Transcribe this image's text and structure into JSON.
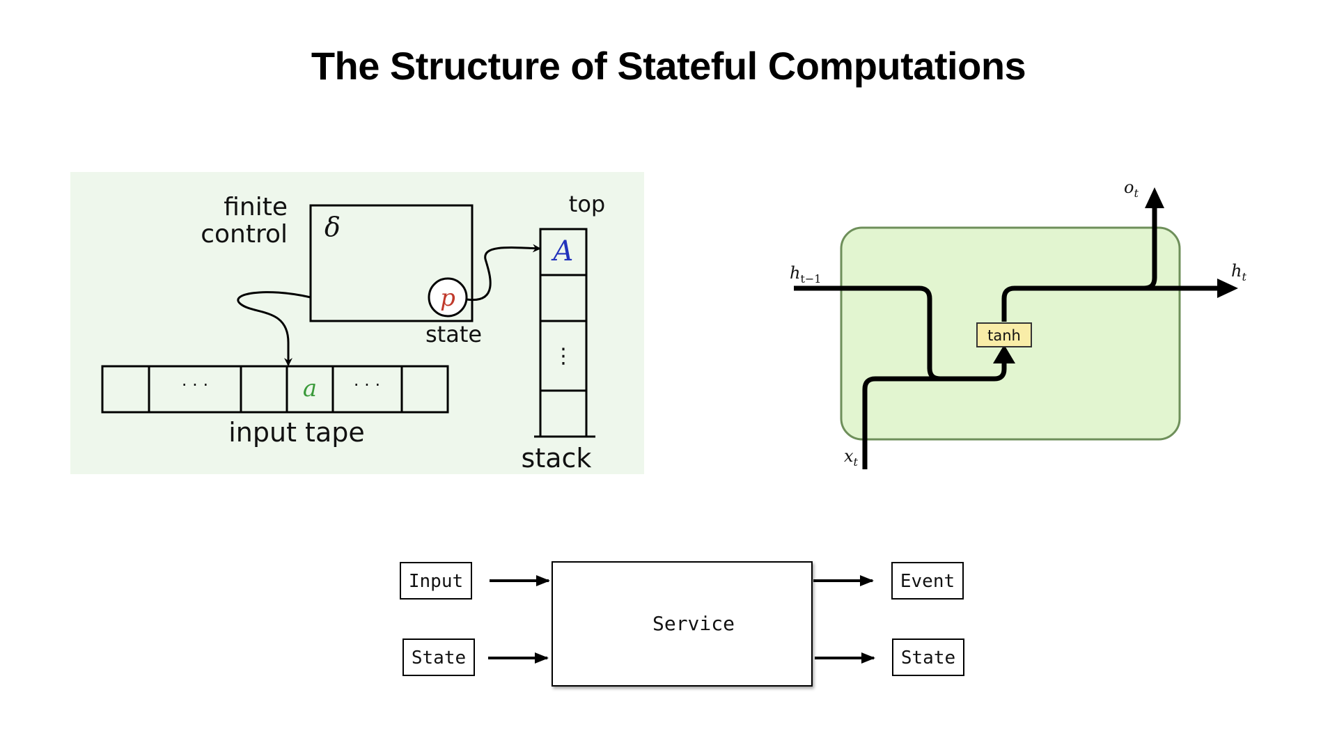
{
  "slide": {
    "title": "The Structure of Stateful Computations"
  },
  "pda": {
    "finite_control_line1": "finite",
    "finite_control_line2": "control",
    "delta_symbol": "δ",
    "state_symbol": "p",
    "state_label": "state",
    "top_label": "top",
    "stack_top_symbol": "A",
    "stack_ellipsis": "⋮",
    "stack_label": "stack",
    "tape_ellipsis": "· · ·",
    "tape_symbol": "a",
    "tape_label": "input tape",
    "colors": {
      "background": "#eef7ec",
      "state_symbol": "#c0392b",
      "stack_symbol": "#2233bb",
      "tape_symbol": "#3a9a3a"
    }
  },
  "rnn": {
    "h_prev": "h",
    "h_prev_sub": "t−1",
    "h_out": "h",
    "h_out_sub": "t",
    "o_out": "o",
    "o_out_sub": "t",
    "x_in": "x",
    "x_in_sub": "t",
    "activation": "tanh",
    "colors": {
      "cell_fill": "#e2f5d0",
      "cell_border": "#6e8f5a",
      "activation_fill": "#f9eda8"
    }
  },
  "service": {
    "inputs": [
      "Input",
      "State"
    ],
    "center": "Service",
    "outputs": [
      "Event",
      "State"
    ]
  }
}
